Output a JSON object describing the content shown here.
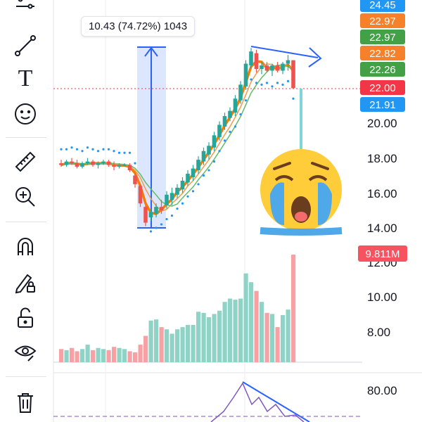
{
  "toolbar": {
    "items": [
      {
        "name": "indicators-icon"
      },
      {
        "name": "trend-line-icon"
      },
      {
        "name": "text-icon",
        "glyph": "T"
      },
      {
        "name": "emoji-icon"
      },
      {
        "name": "ruler-icon"
      },
      {
        "name": "zoom-in-icon"
      },
      {
        "name": "magnet-icon"
      },
      {
        "name": "lock-drawing-icon"
      },
      {
        "name": "unlock-icon"
      },
      {
        "name": "visibility-icon"
      },
      {
        "name": "trash-icon"
      }
    ]
  },
  "measure": {
    "label": "10.43 (74.72%) 1043"
  },
  "price_axis": {
    "labels": [
      "20.00",
      "18.00",
      "16.00",
      "14.00",
      "12.00",
      "10.00",
      "8.00"
    ],
    "tags": [
      {
        "value": "24.45",
        "color": "#2196f3"
      },
      {
        "value": "22.97",
        "color": "#f7812a"
      },
      {
        "value": "22.97",
        "color": "#43a047"
      },
      {
        "value": "22.82",
        "color": "#f7812a"
      },
      {
        "value": "22.26",
        "color": "#43a047"
      },
      {
        "value": "22.00",
        "color": "#f23645"
      },
      {
        "value": "21.91",
        "color": "#2196f3"
      }
    ],
    "volume_tag": {
      "value": "9.811M",
      "color": "#f7525f"
    }
  },
  "oscillator_axis": {
    "labels": [
      "80.00"
    ]
  },
  "colors": {
    "up": "#26a69a",
    "down": "#ef5350",
    "vol_up": "#8fd3c6",
    "vol_down": "#f7a1a4",
    "ema_orange": "#f57c00",
    "sma_thin_orange": "#f39c4a",
    "sma_green": "#66bb6a",
    "sar": "#2196f3",
    "last_price_line": "#f23645",
    "measure": "#2962ff"
  },
  "chart_data": {
    "type": "candlestick",
    "candles": [
      [
        17.7,
        17.9,
        17.5,
        17.6
      ],
      [
        17.6,
        17.9,
        17.5,
        17.8
      ],
      [
        17.8,
        18.0,
        17.6,
        17.7
      ],
      [
        17.7,
        17.9,
        17.4,
        17.5
      ],
      [
        17.5,
        17.8,
        17.4,
        17.7
      ],
      [
        17.7,
        18.0,
        17.6,
        17.8
      ],
      [
        17.8,
        17.9,
        17.5,
        17.6
      ],
      [
        17.6,
        17.8,
        17.4,
        17.7
      ],
      [
        17.7,
        17.9,
        17.6,
        17.8
      ],
      [
        17.8,
        17.9,
        17.5,
        17.6
      ],
      [
        17.6,
        17.8,
        17.3,
        17.5
      ],
      [
        17.5,
        17.7,
        17.4,
        17.6
      ],
      [
        17.6,
        17.7,
        17.5,
        17.6
      ],
      [
        17.6,
        17.7,
        17.2,
        17.3
      ],
      [
        17.0,
        17.1,
        16.3,
        16.5
      ],
      [
        16.4,
        16.5,
        15.2,
        15.4
      ],
      [
        15.2,
        15.3,
        14.1,
        14.3
      ],
      [
        14.6,
        15.1,
        14.4,
        14.9
      ],
      [
        14.8,
        15.4,
        14.6,
        15.2
      ],
      [
        15.2,
        15.6,
        14.8,
        15.0
      ],
      [
        15.3,
        16.1,
        15.1,
        15.9
      ],
      [
        15.6,
        16.3,
        15.3,
        16.0
      ],
      [
        15.9,
        16.5,
        15.7,
        16.3
      ],
      [
        16.2,
        16.9,
        16.0,
        16.7
      ],
      [
        16.6,
        17.3,
        16.4,
        17.1
      ],
      [
        16.9,
        17.6,
        16.7,
        17.4
      ],
      [
        17.3,
        18.1,
        17.1,
        17.9
      ],
      [
        17.8,
        18.6,
        17.6,
        18.4
      ],
      [
        18.2,
        18.9,
        17.9,
        18.7
      ],
      [
        18.6,
        19.5,
        18.4,
        19.3
      ],
      [
        19.2,
        20.1,
        19.0,
        19.9
      ],
      [
        19.8,
        20.6,
        19.6,
        20.4
      ],
      [
        20.3,
        20.9,
        20.1,
        20.7
      ],
      [
        20.6,
        21.6,
        20.4,
        21.4
      ],
      [
        21.3,
        22.4,
        21.1,
        22.2
      ],
      [
        22.1,
        23.6,
        21.9,
        23.4
      ],
      [
        23.3,
        24.3,
        23.1,
        24.1
      ],
      [
        24.0,
        24.2,
        22.9,
        23.1
      ],
      [
        23.1,
        23.5,
        22.8,
        23.3
      ],
      [
        23.3,
        23.5,
        22.9,
        23.0
      ],
      [
        23.0,
        23.4,
        22.7,
        23.3
      ],
      [
        23.3,
        23.5,
        22.9,
        23.0
      ],
      [
        23.0,
        23.5,
        22.8,
        23.4
      ],
      [
        23.4,
        23.9,
        23.0,
        23.6
      ],
      [
        23.6,
        23.6,
        22.0,
        22.0
      ]
    ],
    "volume_millions": [
      1.2,
      1.1,
      1.3,
      1.0,
      1.2,
      1.6,
      1.1,
      1.3,
      1.2,
      1.1,
      1.4,
      1.3,
      1.2,
      1.0,
      0.9,
      1.6,
      2.4,
      3.8,
      3.9,
      3.2,
      3.0,
      2.6,
      3.0,
      3.2,
      3.4,
      3.4,
      4.6,
      4.5,
      4.1,
      4.4,
      4.7,
      5.5,
      5.8,
      5.7,
      5.8,
      8.1,
      7.3,
      6.5,
      5.5,
      4.5,
      4.4,
      3.2,
      4.3,
      4.8,
      9.811
    ],
    "xlabel": "",
    "ylabel": "",
    "ylim": [
      12.0,
      25.0
    ]
  }
}
